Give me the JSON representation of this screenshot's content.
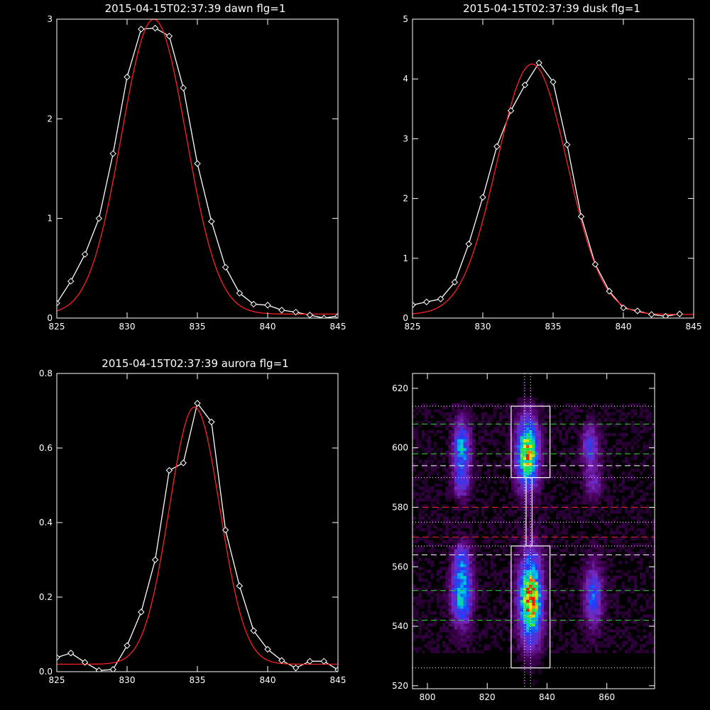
{
  "colors": {
    "background": "#000000",
    "axes": "#ffffff",
    "data": "#ffffff",
    "fit": "#ff2020",
    "green_guide": "#33dd33",
    "red_guide": "#ff2020",
    "box": "#ffffff"
  },
  "chart_data": [
    {
      "id": "dawn",
      "type": "line",
      "title": "2015-04-15T02:37:39 dawn flg=1",
      "xlim": [
        825,
        845
      ],
      "ylim": [
        0,
        3
      ],
      "xticks": [
        825,
        830,
        835,
        840,
        845
      ],
      "yticks": [
        0,
        1,
        2,
        3
      ],
      "series": [
        {
          "role": "data",
          "markers": "diamond",
          "x": [
            825,
            826,
            827,
            828,
            829,
            830,
            831,
            832,
            833,
            834,
            835,
            836,
            837,
            838,
            839,
            840,
            841,
            842,
            843,
            844,
            845
          ],
          "y": [
            0.15,
            0.37,
            0.64,
            1.0,
            1.65,
            2.42,
            2.9,
            2.91,
            2.83,
            2.31,
            1.55,
            0.97,
            0.51,
            0.25,
            0.14,
            0.13,
            0.08,
            0.06,
            0.03,
            0.0,
            0.02
          ]
        },
        {
          "role": "fit",
          "style": "gaussian",
          "amplitude": 2.96,
          "center": 831.9,
          "sigma": 2.3,
          "offset": 0.04
        }
      ]
    },
    {
      "id": "dusk",
      "type": "line",
      "title": "2015-04-15T02:37:39 dusk flg=1",
      "xlim": [
        825,
        845
      ],
      "ylim": [
        0,
        5
      ],
      "xticks": [
        825,
        830,
        835,
        840,
        845
      ],
      "yticks": [
        0,
        1,
        2,
        3,
        4,
        5
      ],
      "series": [
        {
          "role": "data",
          "markers": "diamond",
          "x": [
            825,
            826,
            827,
            828,
            829,
            830,
            831,
            832,
            833,
            834,
            835,
            836,
            837,
            838,
            839,
            840,
            841,
            842,
            843,
            844
          ],
          "y": [
            0.22,
            0.27,
            0.32,
            0.6,
            1.24,
            2.02,
            2.87,
            3.47,
            3.9,
            4.27,
            3.95,
            2.9,
            1.7,
            0.9,
            0.45,
            0.17,
            0.12,
            0.06,
            0.03,
            0.07
          ]
        },
        {
          "role": "fit",
          "style": "gaussian",
          "amplitude": 4.19,
          "center": 833.5,
          "sigma": 2.5,
          "offset": 0.06
        }
      ]
    },
    {
      "id": "aurora",
      "type": "line",
      "title": "2015-04-15T02:37:39 aurora flg=1",
      "xlim": [
        825,
        845
      ],
      "ylim": [
        0,
        0.8
      ],
      "xticks": [
        825,
        830,
        835,
        840,
        845
      ],
      "yticks": [
        0,
        0.2,
        0.4,
        0.6,
        0.8
      ],
      "ytick_labels": [
        "0.0",
        "0.2",
        "0.4",
        "0.6",
        "0.8"
      ],
      "series": [
        {
          "role": "data",
          "markers": "diamond",
          "x": [
            825,
            826,
            827,
            828,
            829,
            830,
            831,
            832,
            833,
            834,
            835,
            836,
            837,
            838,
            839,
            840,
            841,
            842,
            843,
            844,
            845
          ],
          "y": [
            0.038,
            0.05,
            0.025,
            0.003,
            0.006,
            0.07,
            0.16,
            0.3,
            0.54,
            0.56,
            0.72,
            0.67,
            0.38,
            0.23,
            0.11,
            0.06,
            0.03,
            0.01,
            0.028,
            0.028,
            0.005
          ]
        },
        {
          "role": "fit",
          "style": "gaussian",
          "amplitude": 0.69,
          "center": 834.8,
          "sigma": 1.8,
          "offset": 0.02
        }
      ]
    },
    {
      "id": "detector",
      "type": "heatmap",
      "title": "",
      "xlim": [
        795,
        876
      ],
      "ylim": [
        519,
        625
      ],
      "xticks": [
        800,
        820,
        840,
        860
      ],
      "yticks": [
        520,
        540,
        560,
        580,
        600,
        620
      ],
      "colormap": "black-purple-blue-cyan-green-yellow-red",
      "blobs": [
        {
          "x": 811,
          "y": 600,
          "sx": 2.0,
          "sy": 6,
          "intensity": 0.5
        },
        {
          "x": 811,
          "y": 588,
          "sx": 2.0,
          "sy": 4,
          "intensity": 0.28
        },
        {
          "x": 811,
          "y": 550,
          "sx": 2.3,
          "sy": 7,
          "intensity": 0.58
        },
        {
          "x": 811,
          "y": 562,
          "sx": 2.0,
          "sy": 4,
          "intensity": 0.3
        },
        {
          "x": 833,
          "y": 598,
          "sx": 2.5,
          "sy": 8,
          "intensity": 0.85
        },
        {
          "x": 834,
          "y": 549,
          "sx": 2.6,
          "sy": 10,
          "intensity": 0.95
        },
        {
          "x": 854,
          "y": 600,
          "sx": 2.0,
          "sy": 5,
          "intensity": 0.34
        },
        {
          "x": 855,
          "y": 588,
          "sx": 2.0,
          "sy": 4,
          "intensity": 0.22
        },
        {
          "x": 855,
          "y": 550,
          "sx": 2.1,
          "sy": 7,
          "intensity": 0.42
        }
      ],
      "green_lines_y": [
        542,
        552,
        598,
        608
      ],
      "white_dashed_lines_y": [
        564,
        594
      ],
      "red_dashed_lines_y": [
        570,
        580
      ],
      "dotted_lines_y": [
        526,
        567,
        575,
        590,
        614
      ],
      "dotted_lines_x": [
        832.5,
        834.5
      ],
      "boxes": [
        {
          "x0": 828,
          "x1": 841,
          "y0": 590,
          "y1": 614
        },
        {
          "x0": 828,
          "x1": 841,
          "y0": 526,
          "y1": 567
        }
      ],
      "connector": {
        "x0": 833,
        "x1": 835,
        "y0": 567,
        "y1": 590
      }
    }
  ]
}
